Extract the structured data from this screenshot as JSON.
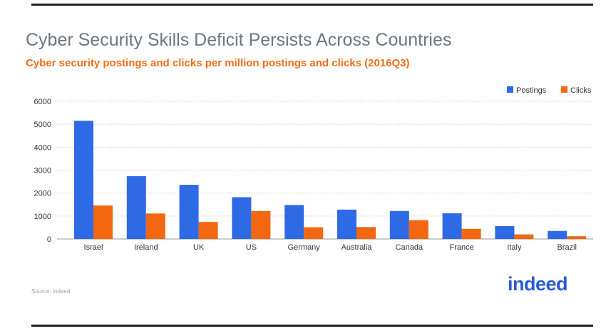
{
  "header": {
    "title": "Cyber Security Skills Deficit Persists Across Countries",
    "subtitle": "Cyber security postings and clicks per million postings and clicks (2016Q3)"
  },
  "footer": {
    "source": "Source: Indeed",
    "logo_text": "indeed"
  },
  "colors": {
    "postings": "#2f6ae6",
    "clicks": "#f2670f",
    "title": "#6b7883",
    "subtitle": "#f46c16",
    "logo": "#2a5ad6"
  },
  "chart_data": {
    "type": "bar",
    "title": "Cyber Security Skills Deficit Persists Across Countries",
    "subtitle": "Cyber security postings and clicks per million postings and clicks (2016Q3)",
    "xlabel": "",
    "ylabel": "",
    "ylim": [
      0,
      6000
    ],
    "yticks": [
      0,
      1000,
      2000,
      3000,
      4000,
      5000,
      6000
    ],
    "grid": true,
    "legend_position": "top-right",
    "categories": [
      "Israel",
      "Ireland",
      "UK",
      "US",
      "Germany",
      "Australia",
      "Canada",
      "France",
      "Italy",
      "Brazil"
    ],
    "series": [
      {
        "name": "Postings",
        "color": "#2f6ae6",
        "values": [
          5150,
          2740,
          2360,
          1820,
          1480,
          1280,
          1220,
          1120,
          560,
          350
        ]
      },
      {
        "name": "Clicks",
        "color": "#f2670f",
        "values": [
          1460,
          1110,
          740,
          1220,
          510,
          520,
          820,
          440,
          200,
          120
        ]
      }
    ]
  }
}
